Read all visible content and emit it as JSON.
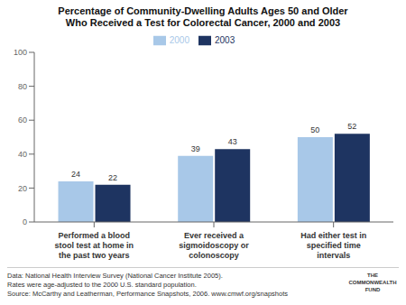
{
  "chart_data": {
    "type": "bar",
    "title": "Percentage of Community-Dwelling Adults Ages 50 and Older\nWho Received a Test for Colorectal Cancer, 2000 and 2003",
    "categories": [
      "Performed a blood\nstool test at home in\nthe past two years",
      "Ever received a\nsigmoidoscopy or\ncolonoscopy",
      "Had either test in\nspecified time\nintervals"
    ],
    "series": [
      {
        "name": "2000",
        "color": "#a8c8e8",
        "values": [
          24,
          39,
          50
        ]
      },
      {
        "name": "2003",
        "color": "#1e3461",
        "values": [
          22,
          43,
          52
        ]
      }
    ],
    "ylim": [
      0,
      100
    ],
    "yticks": [
      0,
      20,
      40,
      60,
      80,
      100
    ],
    "grid": false,
    "legend": "top",
    "data_labels": true,
    "annotations": [
      "Data: National Health Interview Survey (National Cancer Institute 2005).",
      "Rates were age-adjusted to the 2000 U.S. standard population.",
      "Source: McCarthy and Leatherman, Performance Snapshots, 2006. www.cmwf.org/snapshots",
      "THE",
      "COMMONWEALTH",
      "FUND"
    ]
  }
}
